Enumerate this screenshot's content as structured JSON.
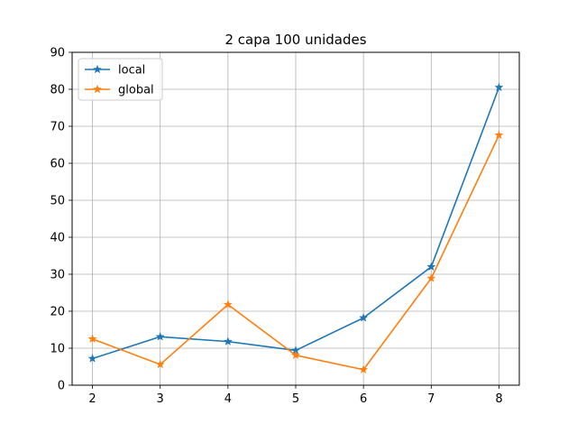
{
  "chart_data": {
    "type": "line",
    "title": "2 capa 100 unidades",
    "xlabel": "",
    "ylabel": "",
    "x": [
      2,
      3,
      4,
      5,
      6,
      7,
      8
    ],
    "xticks": [
      "2",
      "3",
      "4",
      "5",
      "6",
      "7",
      "8"
    ],
    "yticks": [
      "0",
      "10",
      "20",
      "30",
      "40",
      "50",
      "60",
      "70",
      "80",
      "90"
    ],
    "xlim": [
      1.7,
      8.3
    ],
    "ylim": [
      0,
      90
    ],
    "grid": true,
    "legend_position": "top-left",
    "marker": "star",
    "series": [
      {
        "name": "local",
        "color": "#1f77b4",
        "values": [
          7.2,
          13.1,
          11.8,
          9.4,
          18.2,
          32.0,
          80.5
        ]
      },
      {
        "name": "global",
        "color": "#ff7f0e",
        "values": [
          12.5,
          5.6,
          21.8,
          8.1,
          4.2,
          28.9,
          67.6
        ]
      }
    ]
  }
}
